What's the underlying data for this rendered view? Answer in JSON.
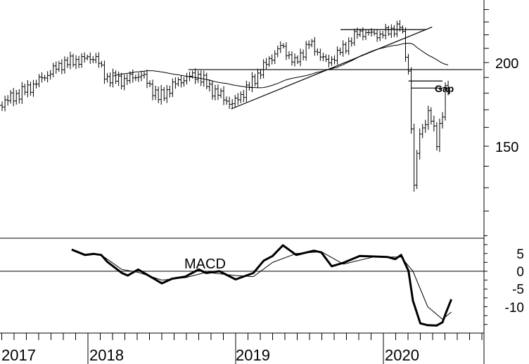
{
  "chart_data": [
    {
      "type": "line",
      "subtype": "ohlc-bar",
      "title": "",
      "yscale": "log",
      "ylim": [
        117,
        245
      ],
      "yticks_labeled": [
        200,
        150
      ],
      "yticks_minor": [
        120,
        130,
        140,
        150,
        160,
        170,
        180,
        190,
        200,
        210,
        220,
        230,
        240
      ],
      "xlim": [
        2017.4,
        2020.67
      ],
      "price_path": [
        [
          2017.4,
          173
        ],
        [
          2017.6,
          183
        ],
        [
          2017.83,
          199.5
        ],
        [
          2018.05,
          204
        ],
        [
          2018.12,
          190
        ],
        [
          2018.24,
          188
        ],
        [
          2018.36,
          192
        ],
        [
          2018.48,
          177
        ],
        [
          2018.62,
          188
        ],
        [
          2018.74,
          192
        ],
        [
          2018.83,
          183
        ],
        [
          2018.98,
          173
        ],
        [
          2019.1,
          185.5
        ],
        [
          2019.19,
          197
        ],
        [
          2019.31,
          212
        ],
        [
          2019.4,
          199.5
        ],
        [
          2019.5,
          214
        ],
        [
          2019.62,
          199.5
        ],
        [
          2019.74,
          211
        ],
        [
          2019.83,
          222
        ],
        [
          2019.98,
          220
        ],
        [
          2020.12,
          227
        ],
        [
          2020.16,
          199.5
        ],
        [
          2020.18,
          188
        ],
        [
          2020.2,
          123
        ],
        [
          2020.24,
          156
        ],
        [
          2020.31,
          168
        ],
        [
          2020.36,
          153
        ],
        [
          2020.4,
          168
        ],
        [
          2020.43,
          188
        ],
        [
          2020.45,
          177
        ]
      ],
      "moving_average_weeks": 40,
      "trendlines": [
        {
          "name": "rising-support",
          "from": [
            2018.97,
            170.5
          ],
          "to": [
            2020.33,
            226
          ]
        },
        {
          "name": "horizontal-support",
          "from": [
            2018.68,
            195.2
          ],
          "to": [
            2020.67,
            195.2
          ]
        },
        {
          "name": "top-resistance",
          "from": [
            2019.71,
            224
          ],
          "to": [
            2020.29,
            224
          ]
        },
        {
          "name": "gap-upper",
          "from": [
            2020.17,
            187.7
          ],
          "to": [
            2020.4,
            187.7
          ]
        },
        {
          "name": "gap-lower",
          "from": [
            2020.19,
            183.2
          ],
          "to": [
            2020.45,
            183.2
          ]
        }
      ],
      "annotations": [
        "Gap"
      ]
    },
    {
      "type": "line",
      "title": "MACD",
      "ylim": [
        -17,
        10
      ],
      "yticks": [
        "5",
        "0",
        "-5",
        "-10"
      ],
      "ytick_values": [
        5,
        0,
        -5,
        -10
      ],
      "series": [
        {
          "name": "MACD",
          "points": [
            [
              2017.89,
              6.1
            ],
            [
              2017.98,
              4.6
            ],
            [
              2018.04,
              4.9
            ],
            [
              2018.09,
              4.6
            ],
            [
              2018.13,
              2.7
            ],
            [
              2018.23,
              -0.5
            ],
            [
              2018.27,
              -1.2
            ],
            [
              2018.34,
              0.5
            ],
            [
              2018.41,
              -1.2
            ],
            [
              2018.5,
              -3.4
            ],
            [
              2018.57,
              -2.1
            ],
            [
              2018.66,
              -1.5
            ],
            [
              2018.75,
              0.5
            ],
            [
              2018.8,
              -0.5
            ],
            [
              2018.89,
              0.0
            ],
            [
              2019.0,
              -2.3
            ],
            [
              2019.12,
              -0.5
            ],
            [
              2019.19,
              3.0
            ],
            [
              2019.25,
              4.3
            ],
            [
              2019.32,
              7.3
            ],
            [
              2019.41,
              4.6
            ],
            [
              2019.53,
              5.8
            ],
            [
              2019.58,
              5.3
            ],
            [
              2019.65,
              1.4
            ],
            [
              2019.73,
              2.4
            ],
            [
              2019.84,
              4.3
            ],
            [
              2020.03,
              4.0
            ],
            [
              2020.08,
              3.4
            ],
            [
              2020.12,
              4.6
            ],
            [
              2020.17,
              0.1
            ],
            [
              2020.2,
              -8.3
            ],
            [
              2020.25,
              -14.7
            ],
            [
              2020.3,
              -15.2
            ],
            [
              2020.36,
              -15.3
            ],
            [
              2020.4,
              -14.4
            ],
            [
              2020.42,
              -12.1
            ],
            [
              2020.46,
              -7.9
            ]
          ]
        },
        {
          "name": "Signal",
          "points": [
            [
              2018.09,
              4.6
            ],
            [
              2018.23,
              0.5
            ],
            [
              2018.34,
              -0.3
            ],
            [
              2018.5,
              -2.5
            ],
            [
              2018.66,
              -1.8
            ],
            [
              2018.8,
              -0.3
            ],
            [
              2019.0,
              -1.2
            ],
            [
              2019.12,
              -1.5
            ],
            [
              2019.25,
              2.5
            ],
            [
              2019.41,
              5.0
            ],
            [
              2019.58,
              5.5
            ],
            [
              2019.73,
              2.0
            ],
            [
              2019.93,
              4.0
            ],
            [
              2020.12,
              4.0
            ],
            [
              2020.2,
              0.0
            ],
            [
              2020.3,
              -10.0
            ],
            [
              2020.4,
              -13.5
            ],
            [
              2020.46,
              -11.5
            ]
          ]
        }
      ]
    }
  ],
  "labels": {
    "price_200": "200",
    "price_150": "150",
    "macd_title": "MACD",
    "gap": "Gap",
    "years": [
      "2017",
      "2018",
      "2019",
      "2020"
    ]
  },
  "year_values": [
    2017,
    2018,
    2019,
    2020
  ]
}
